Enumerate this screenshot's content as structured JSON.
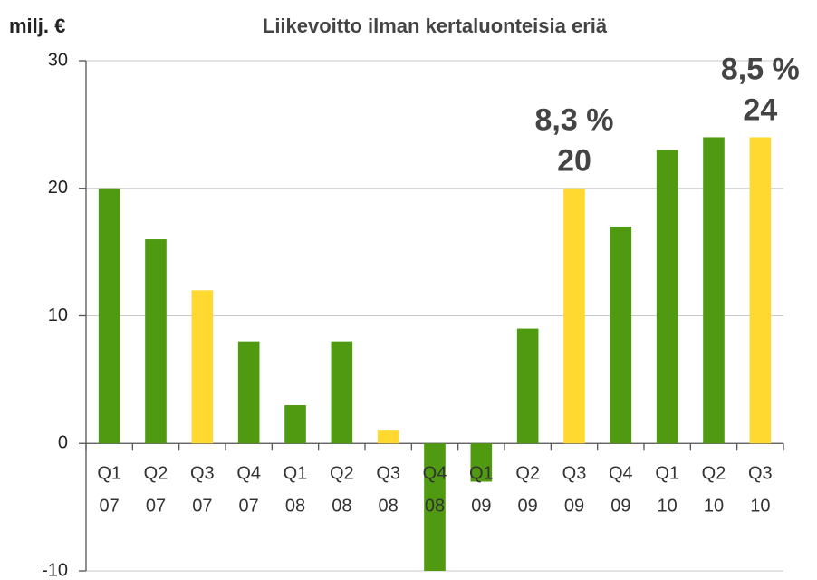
{
  "chart_data": {
    "type": "bar",
    "title": "Liikevoitto ilman kertaluonteisia eriä",
    "y_label": "milj. €",
    "categories": [
      [
        "Q1",
        "07"
      ],
      [
        "Q2",
        "07"
      ],
      [
        "Q3",
        "07"
      ],
      [
        "Q4",
        "07"
      ],
      [
        "Q1",
        "08"
      ],
      [
        "Q2",
        "08"
      ],
      [
        "Q3",
        "08"
      ],
      [
        "Q4",
        "08"
      ],
      [
        "Q1",
        "09"
      ],
      [
        "Q2",
        "09"
      ],
      [
        "Q3",
        "09"
      ],
      [
        "Q4",
        "09"
      ],
      [
        "Q1",
        "10"
      ],
      [
        "Q2",
        "10"
      ],
      [
        "Q3",
        "10"
      ]
    ],
    "values": [
      20,
      16,
      12,
      8,
      3,
      8,
      1,
      -10,
      -3,
      9,
      20,
      17,
      23,
      24,
      24
    ],
    "colors": [
      "#4f9a10",
      "#4f9a10",
      "#ffd92f",
      "#4f9a10",
      "#4f9a10",
      "#4f9a10",
      "#ffd92f",
      "#4f9a10",
      "#4f9a10",
      "#4f9a10",
      "#ffd92f",
      "#4f9a10",
      "#4f9a10",
      "#4f9a10",
      "#ffd92f"
    ],
    "margin_labels": [
      null,
      null,
      null,
      null,
      null,
      null,
      null,
      null,
      null,
      null,
      "8,3 %",
      null,
      null,
      null,
      "8,5 %"
    ],
    "ylim": [
      -10,
      30
    ],
    "yticks": [
      -10,
      0,
      10,
      20,
      30
    ],
    "grid": true
  }
}
